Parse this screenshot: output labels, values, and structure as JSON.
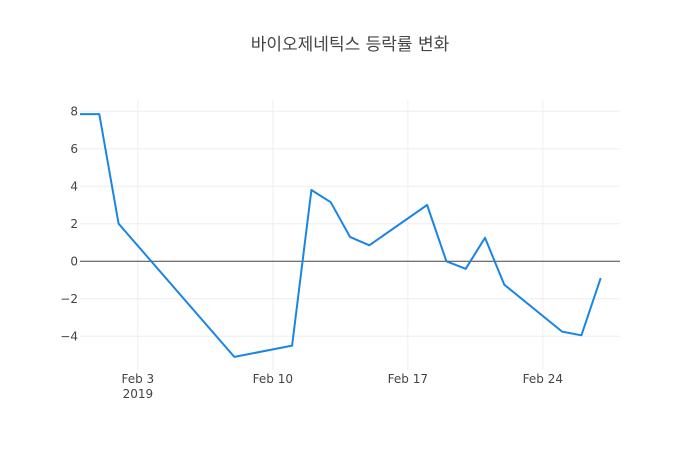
{
  "chart_data": {
    "type": "line",
    "title": "바이오제네틱스 등락률 변화",
    "xlabel": "",
    "ylabel": "",
    "x_range": [
      "2019-01-31",
      "2019-02-28"
    ],
    "ylim": [
      -5.8,
      8.6
    ],
    "y_ticks": [
      8,
      6,
      4,
      2,
      0,
      -2,
      -4
    ],
    "y_tick_labels": [
      "8",
      "6",
      "4",
      "2",
      "0",
      "−2",
      "−4"
    ],
    "x_ticks": [
      {
        "date": "2019-02-03",
        "label": "Feb 3",
        "sublabel": "2019"
      },
      {
        "date": "2019-02-10",
        "label": "Feb 10",
        "sublabel": ""
      },
      {
        "date": "2019-02-17",
        "label": "Feb 17",
        "sublabel": ""
      },
      {
        "date": "2019-02-24",
        "label": "Feb 24",
        "sublabel": ""
      }
    ],
    "grid": true,
    "zero_line": true,
    "series": [
      {
        "color": "#1f77b4",
        "line_color": "#1a85e6",
        "x": [
          "2019-01-31",
          "2019-02-01",
          "2019-02-02",
          "2019-02-08",
          "2019-02-11",
          "2019-02-12",
          "2019-02-13",
          "2019-02-14",
          "2019-02-15",
          "2019-02-18",
          "2019-02-19",
          "2019-02-20",
          "2019-02-21",
          "2019-02-22",
          "2019-02-25",
          "2019-02-26",
          "2019-02-27"
        ],
        "y": [
          7.85,
          7.85,
          2.0,
          -5.1,
          -4.5,
          3.8,
          3.15,
          1.3,
          0.85,
          3.0,
          0.0,
          -0.4,
          1.25,
          -1.25,
          -3.75,
          -3.95,
          -0.9
        ]
      }
    ]
  }
}
